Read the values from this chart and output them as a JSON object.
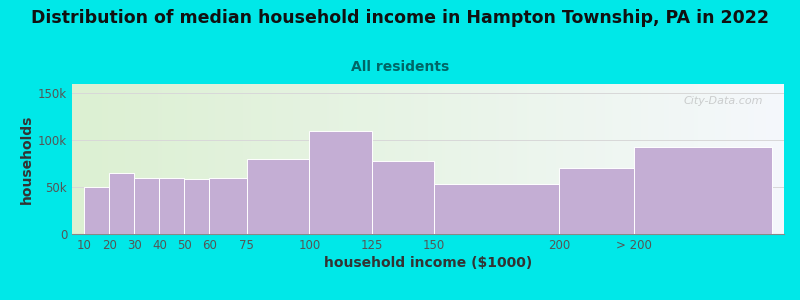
{
  "title": "Distribution of median household income in Hampton Township, PA in 2022",
  "subtitle": "All residents",
  "xlabel": "household income ($1000)",
  "ylabel": "households",
  "bar_values": [
    50000,
    65000,
    60000,
    60000,
    59000,
    60000,
    80000,
    110000,
    78000,
    53000,
    70000,
    93000
  ],
  "bar_color": "#c4aed4",
  "bar_edgecolor": "#ffffff",
  "background_outer": "#00e8e8",
  "ylim": [
    0,
    160000
  ],
  "yticks": [
    0,
    50000,
    100000,
    150000
  ],
  "ytick_labels": [
    "0",
    "50k",
    "100k",
    "150k"
  ],
  "grid_color": "#d8d8d8",
  "title_fontsize": 12.5,
  "subtitle_fontsize": 10,
  "subtitle_color": "#006666",
  "axis_label_fontsize": 10,
  "title_color": "#111111",
  "tick_color": "#555555",
  "watermark": "City-Data.com",
  "left_edges": [
    10,
    20,
    30,
    40,
    50,
    60,
    75,
    100,
    125,
    150,
    200,
    230
  ],
  "widths": [
    10,
    10,
    10,
    10,
    10,
    15,
    25,
    25,
    25,
    50,
    30,
    55
  ],
  "xtick_positions": [
    10,
    20,
    30,
    40,
    50,
    60,
    75,
    100,
    125,
    150,
    200,
    230
  ],
  "xtick_labels": [
    "10",
    "20",
    "30",
    "40",
    "50",
    "60",
    "75",
    "100",
    "125",
    "150",
    "200",
    "> 200"
  ],
  "xlim": [
    5,
    290
  ]
}
